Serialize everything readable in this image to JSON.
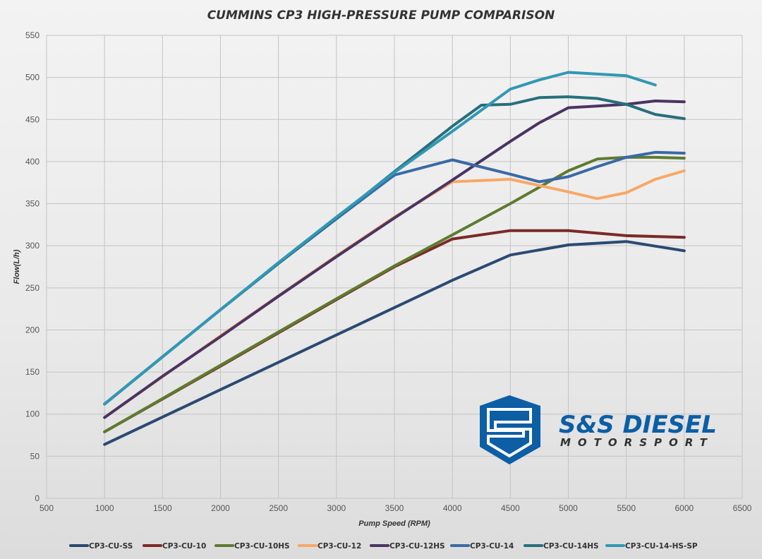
{
  "chart_data": {
    "type": "line",
    "title": "CUMMINS CP3 HIGH-PRESSURE PUMP COMPARISON",
    "xlabel": "Pump Speed (RPM)",
    "ylabel": "Flow(L/h)",
    "xlim": [
      500,
      6500
    ],
    "ylim": [
      0,
      550
    ],
    "xticks": [
      500,
      1000,
      1500,
      2000,
      2500,
      3000,
      3500,
      4000,
      4500,
      5000,
      5500,
      6000,
      6500
    ],
    "yticks": [
      0,
      50,
      100,
      150,
      200,
      250,
      300,
      350,
      400,
      450,
      500,
      550
    ],
    "grid": true,
    "legend_position": "bottom",
    "series": [
      {
        "name": "CP3-CU-SS",
        "color": "#2b4a72",
        "x": [
          1000,
          2000,
          3000,
          4000,
          4500,
          5000,
          5500,
          6000
        ],
        "y": [
          64,
          129,
          194,
          259,
          289,
          301,
          305,
          294
        ]
      },
      {
        "name": "CP3-CU-10",
        "color": "#7a2a28",
        "x": [
          1000,
          2000,
          3000,
          3500,
          4000,
          4500,
          5000,
          5500,
          6000
        ],
        "y": [
          79,
          157,
          236,
          275,
          308,
          318,
          318,
          312,
          310
        ]
      },
      {
        "name": "CP3-CU-10HS",
        "color": "#5e7b2f",
        "x": [
          1000,
          2000,
          3000,
          3500,
          4000,
          4500,
          5000,
          5250,
          5500,
          5750,
          6000
        ],
        "y": [
          79,
          158,
          237,
          276,
          313,
          350,
          389,
          403,
          405,
          405,
          404
        ]
      },
      {
        "name": "CP3-CU-12",
        "color": "#f7a867",
        "x": [
          1000,
          2000,
          3000,
          3500,
          4000,
          4500,
          5000,
          5250,
          5500,
          5750,
          6000
        ],
        "y": [
          96,
          193,
          288,
          334,
          376,
          379,
          364,
          356,
          363,
          379,
          389
        ]
      },
      {
        "name": "CP3-CU-12HS",
        "color": "#4a3463",
        "x": [
          1000,
          1500,
          2000,
          2500,
          3000,
          3500,
          4000,
          4500,
          4750,
          5000,
          5250,
          5500,
          5750,
          6000
        ],
        "y": [
          96,
          145,
          192,
          240,
          287,
          333,
          378,
          424,
          446,
          464,
          466,
          468,
          472,
          471
        ]
      },
      {
        "name": "CP3-CU-14",
        "color": "#3a69a6",
        "x": [
          1000,
          1500,
          2000,
          2500,
          3000,
          3500,
          4000,
          4500,
          4750,
          5000,
          5250,
          5500,
          5750,
          6000
        ],
        "y": [
          112,
          168,
          224,
          279,
          332,
          384,
          402,
          385,
          376,
          382,
          394,
          405,
          411,
          410
        ]
      },
      {
        "name": "CP3-CU-14HS",
        "color": "#276f7c",
        "x": [
          1000,
          1500,
          2000,
          2500,
          3000,
          3500,
          4000,
          4250,
          4500,
          4750,
          5000,
          5250,
          5500,
          5750,
          6000
        ],
        "y": [
          112,
          168,
          224,
          279,
          333,
          388,
          442,
          467,
          468,
          476,
          477,
          475,
          468,
          456,
          451
        ]
      },
      {
        "name": "CP3-CU-14-HS-SP",
        "color": "#3198b4",
        "x": [
          1000,
          1500,
          2000,
          2500,
          3000,
          3500,
          4000,
          4500,
          4750,
          5000,
          5250,
          5500,
          5750
        ],
        "y": [
          112,
          168,
          224,
          280,
          334,
          387,
          436,
          486,
          497,
          506,
          504,
          502,
          491
        ]
      }
    ]
  },
  "logo": {
    "name": "S&S DIESEL",
    "tagline": "MOTORSPORT",
    "color": "#0c5ea5"
  }
}
